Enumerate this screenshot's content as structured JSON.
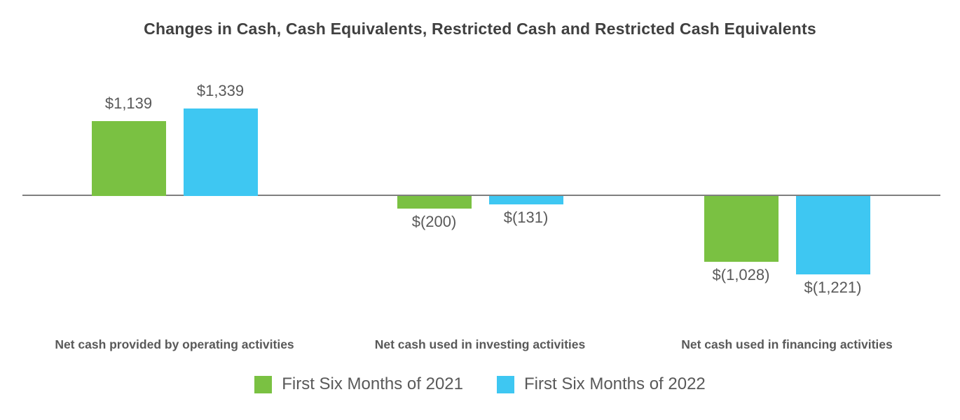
{
  "chart_data": {
    "type": "bar",
    "title": "Changes in Cash, Cash Equivalents, Restricted Cash and Restricted Cash Equivalents",
    "categories": [
      "Net cash provided by operating activities",
      "Net cash used in investing activities",
      "Net cash used in financing activities"
    ],
    "series": [
      {
        "name": "First Six Months of 2021",
        "color": "#7AC142",
        "values": [
          1139,
          -200,
          -1028
        ],
        "labels": [
          "$1,139",
          "$(200)",
          "$(1,028)"
        ]
      },
      {
        "name": "First Six Months of 2022",
        "color": "#3EC7F2",
        "values": [
          1339,
          -131,
          -1221
        ],
        "labels": [
          "$1,339",
          "$(131)",
          "$(1,221)"
        ]
      }
    ],
    "xlabel": "",
    "ylabel": "",
    "ylim": [
      -1339,
      1339
    ],
    "grid": false,
    "axes_shown": false,
    "data_labels_shown": true,
    "legend_position": "bottom",
    "colors": {
      "axis_line": "#7F7F7F",
      "title_text": "#404040",
      "label_text": "#595959"
    }
  }
}
